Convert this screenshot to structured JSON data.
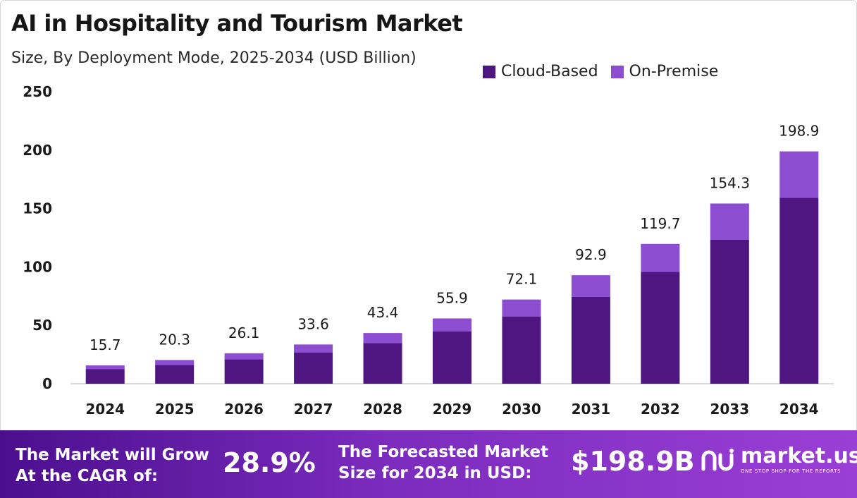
{
  "header": {
    "title": "AI in Hospitality and Tourism Market",
    "subtitle": "Size, By Deployment Mode, 2025-2034 (USD Billion)"
  },
  "legend": {
    "items": [
      {
        "label": "Cloud-Based",
        "color": "#4f1682"
      },
      {
        "label": "On-Premise",
        "color": "#8c4dd1"
      }
    ]
  },
  "chart_data": {
    "type": "bar",
    "stacked": true,
    "title": "AI in Hospitality and Tourism Market",
    "subtitle": "Size, By Deployment Mode, 2025-2034 (USD Billion)",
    "categories": [
      "2024",
      "2025",
      "2026",
      "2027",
      "2028",
      "2029",
      "2030",
      "2031",
      "2032",
      "2033",
      "2034"
    ],
    "series": [
      {
        "name": "Cloud-Based",
        "color": "#4f1682",
        "values": [
          12.6,
          16.2,
          20.8,
          26.8,
          34.7,
          44.7,
          57.6,
          74.3,
          95.8,
          123.4,
          159.1
        ]
      },
      {
        "name": "On-Premise",
        "color": "#8c4dd1",
        "values": [
          3.1,
          4.1,
          5.3,
          6.8,
          8.7,
          11.2,
          14.5,
          18.6,
          23.9,
          30.9,
          39.8
        ]
      }
    ],
    "totals": [
      15.7,
      20.3,
      26.1,
      33.6,
      43.4,
      55.9,
      72.1,
      92.9,
      119.7,
      154.3,
      198.9
    ],
    "total_labels": [
      "15.7",
      "20.3",
      "26.1",
      "33.6",
      "43.4",
      "55.9",
      "72.1",
      "92.9",
      "119.7",
      "154.3",
      "198.9"
    ],
    "yticks": [
      "0",
      "50",
      "100",
      "150",
      "200",
      "250"
    ],
    "ylim": [
      0,
      250
    ],
    "xlabel": "",
    "ylabel": "",
    "grid": false,
    "legend_position": "top-right"
  },
  "banner": {
    "cagr_text_line1": "The Market will Grow",
    "cagr_text_line2": "At the CAGR of:",
    "cagr_value": "28.9%",
    "forecast_text_line1": "The Forecasted Market",
    "forecast_text_line2": "Size for 2034 in USD:",
    "forecast_value": "$198.9B",
    "logo_name": "market.us",
    "logo_tagline": "ONE STOP SHOP FOR THE REPORTS",
    "logo_icon": "market-us-logo-icon"
  }
}
